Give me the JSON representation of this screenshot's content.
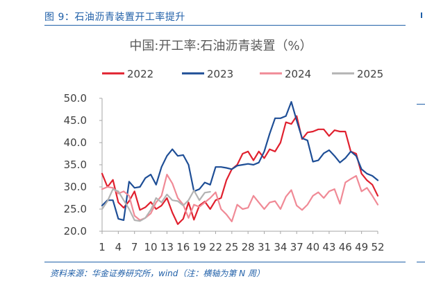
{
  "figure": {
    "caption": "图 9：石油沥青装置开工率提升",
    "source": "资料来源：华金证券研究所，wind（注：横轴为第 N 周）"
  },
  "chart_data": {
    "type": "line",
    "title": "中国:开工率:石油沥青装置（%）",
    "xlabel": "",
    "ylabel": "",
    "ylim": [
      20,
      50
    ],
    "yticks": [
      "50.0",
      "45.0",
      "40.0",
      "35.0",
      "30.0",
      "25.0",
      "20.0"
    ],
    "ytick_values": [
      50,
      45,
      40,
      35,
      30,
      25,
      20
    ],
    "xticks": [
      1,
      4,
      7,
      10,
      13,
      16,
      19,
      22,
      25,
      28,
      31,
      34,
      37,
      40,
      43,
      46,
      49,
      52
    ],
    "xlim": [
      1,
      52
    ],
    "grid": false,
    "legend_position": "top",
    "series": [
      {
        "name": "2022",
        "color": "#e0202e",
        "x": [
          1,
          2,
          3,
          4,
          5,
          6,
          7,
          8,
          9,
          10,
          11,
          12,
          13,
          14,
          15,
          16,
          17,
          18,
          19,
          20,
          21,
          22,
          23,
          24,
          25,
          26,
          27,
          28,
          29,
          30,
          31,
          32,
          33,
          34,
          35,
          36,
          37,
          38,
          39,
          40,
          41,
          42,
          43,
          44,
          45,
          46,
          47,
          48,
          49,
          50,
          51,
          52
        ],
        "values": [
          33.0,
          30.0,
          31.6,
          26.5,
          25.3,
          26.8,
          29.0,
          24.8,
          25.4,
          26.6,
          25.0,
          25.8,
          27.5,
          24.2,
          21.6,
          22.8,
          26.5,
          22.6,
          25.8,
          26.7,
          25.0,
          27.0,
          27.5,
          31.5,
          34.0,
          35.0,
          37.5,
          38.0,
          36.0,
          38.0,
          36.5,
          38.5,
          38.0,
          40.0,
          44.6,
          44.2,
          46.0,
          40.8,
          42.3,
          42.5,
          43.0,
          43.0,
          41.5,
          42.8,
          42.5,
          42.5,
          38.0,
          37.5,
          33.0,
          31.5,
          30.5,
          28.0
        ]
      },
      {
        "name": "2023",
        "color": "#1e4e96",
        "x": [
          1,
          2,
          3,
          4,
          5,
          6,
          7,
          8,
          9,
          10,
          11,
          12,
          13,
          14,
          15,
          16,
          17,
          18,
          19,
          20,
          21,
          22,
          23,
          24,
          25,
          26,
          27,
          28,
          29,
          30,
          31,
          32,
          33,
          34,
          35,
          36,
          37,
          38,
          39,
          40,
          41,
          42,
          43,
          44,
          45,
          46,
          47,
          48,
          49,
          50,
          51,
          52
        ],
        "values": [
          25.8,
          27.0,
          27.0,
          22.8,
          22.5,
          31.2,
          29.8,
          30.0,
          32.0,
          32.8,
          30.5,
          34.5,
          37.0,
          38.5,
          37.0,
          37.2,
          35.0,
          29.0,
          29.5,
          31.0,
          30.5,
          34.5,
          34.5,
          34.3,
          34.0,
          34.8,
          35.0,
          35.2,
          35.0,
          35.5,
          38.0,
          42.0,
          45.5,
          45.5,
          46.0,
          49.2,
          45.0,
          41.0,
          40.5,
          35.7,
          36.0,
          37.6,
          38.3,
          37.0,
          35.5,
          36.5,
          38.0,
          37.0,
          34.0,
          33.0,
          32.5,
          31.5
        ]
      },
      {
        "name": "2024",
        "color": "#f08a96",
        "x": [
          1,
          2,
          3,
          4,
          5,
          6,
          7,
          8,
          9,
          10,
          11,
          12,
          13,
          14,
          15,
          16,
          17,
          18,
          19,
          20,
          21,
          22,
          23,
          24,
          25,
          26,
          27,
          28,
          29,
          30,
          31,
          32,
          33,
          34,
          35,
          36,
          37,
          38,
          39,
          40,
          41,
          42,
          43,
          44,
          45,
          46,
          47,
          48,
          49,
          50,
          51,
          52
        ],
        "values": [
          29.5,
          30.0,
          29.8,
          28.5,
          29.0,
          28.0,
          23.5,
          22.5,
          23.0,
          24.0,
          26.5,
          28.0,
          32.8,
          30.8,
          27.5,
          26.0,
          23.0,
          26.0,
          25.5,
          26.5,
          27.5,
          28.8,
          25.0,
          23.8,
          22.2,
          26.0,
          25.0,
          25.3,
          28.0,
          26.5,
          25.0,
          26.5,
          26.8,
          25.0,
          27.8,
          29.3,
          25.8,
          24.8,
          26.0,
          28.0,
          28.8,
          27.5,
          29.0,
          29.5,
          26.2,
          31.0,
          31.8,
          32.5,
          29.0,
          29.8,
          28.0,
          26.0
        ]
      },
      {
        "name": "2025",
        "color": "#b3b3b3",
        "x": [
          1,
          2,
          3,
          4,
          5,
          6,
          7,
          8,
          9,
          10,
          11,
          12,
          13,
          14,
          15,
          16,
          17,
          18,
          19,
          20,
          21
        ],
        "values": [
          25.0,
          26.8,
          29.5,
          29.0,
          27.0,
          25.0,
          22.5,
          22.3,
          23.0,
          24.8,
          27.5,
          26.5,
          28.3,
          27.0,
          26.8,
          25.8,
          27.0,
          29.2,
          27.0,
          28.7,
          28.9
        ]
      }
    ]
  }
}
